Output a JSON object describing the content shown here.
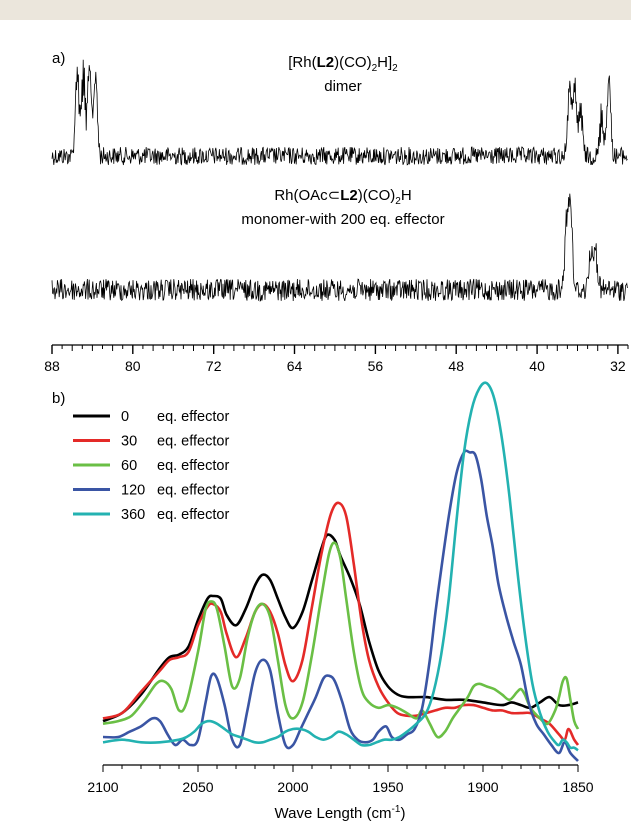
{
  "chart_data": [
    {
      "type": "line",
      "panel_label": "a)",
      "traces": [
        {
          "name_parts": [
            "[Rh(",
            "L2",
            ")(CO)",
            "2",
            "H]",
            "2"
          ],
          "subtitle": "dimer",
          "peaks": [
            {
              "x": 85.5,
              "height": 1.0
            },
            {
              "x": 84.9,
              "height": 1.0
            },
            {
              "x": 84.3,
              "height": 1.0
            },
            {
              "x": 83.7,
              "height": 0.95
            },
            {
              "x": 36.8,
              "height": 0.75
            },
            {
              "x": 36.3,
              "height": 0.8
            },
            {
              "x": 35.7,
              "height": 0.6
            },
            {
              "x": 33.6,
              "height": 0.5
            },
            {
              "x": 32.9,
              "height": 0.9
            }
          ]
        },
        {
          "name_parts": [
            "Rh(OAc⊂",
            "L2",
            ")(CO)",
            "2",
            "H"
          ],
          "subtitle": "monomer-with 200 eq. effector",
          "peaks": [
            {
              "x": 37.1,
              "height": 0.8
            },
            {
              "x": 36.7,
              "height": 1.0
            },
            {
              "x": 34.7,
              "height": 0.45
            },
            {
              "x": 34.2,
              "height": 0.5
            }
          ]
        }
      ],
      "xticks": [
        "88",
        "80",
        "72",
        "64",
        "56",
        "48",
        "40",
        "32"
      ],
      "xlim": [
        88,
        31
      ],
      "reversed_x": true
    },
    {
      "type": "line",
      "panel_label": "b)",
      "xlabel": "Wave Length (cm",
      "xlabel_sup": "-1",
      "xlabel_end": ")",
      "xlim": [
        2100,
        1850
      ],
      "xticks": [
        "2100",
        "2050",
        "2000",
        "1950",
        "1900",
        "1850"
      ],
      "series": [
        {
          "name": "0",
          "legend_text": "eq. effector",
          "color": "#000000",
          "x": [
            2100,
            2090,
            2080,
            2070,
            2065,
            2060,
            2055,
            2050,
            2045,
            2042,
            2038,
            2035,
            2030,
            2025,
            2020,
            2016,
            2012,
            2008,
            2004,
            2000,
            1995,
            1990,
            1985,
            1982,
            1978,
            1975,
            1970,
            1965,
            1960,
            1955,
            1950,
            1945,
            1940,
            1930,
            1920,
            1910,
            1900,
            1890,
            1885,
            1880,
            1875,
            1870,
            1865,
            1860,
            1855,
            1850
          ],
          "y": [
            0.09,
            0.12,
            0.19,
            0.29,
            0.33,
            0.34,
            0.37,
            0.47,
            0.55,
            0.56,
            0.55,
            0.49,
            0.45,
            0.51,
            0.6,
            0.64,
            0.62,
            0.55,
            0.48,
            0.44,
            0.5,
            0.62,
            0.74,
            0.79,
            0.77,
            0.71,
            0.63,
            0.53,
            0.39,
            0.28,
            0.22,
            0.19,
            0.18,
            0.18,
            0.17,
            0.17,
            0.16,
            0.15,
            0.16,
            0.15,
            0.14,
            0.16,
            0.18,
            0.15,
            0.15,
            0.16
          ]
        },
        {
          "name": "30",
          "legend_text": "eq. effector",
          "color": "#e42a28",
          "x": [
            2100,
            2090,
            2080,
            2070,
            2065,
            2060,
            2055,
            2050,
            2045,
            2042,
            2038,
            2035,
            2030,
            2025,
            2020,
            2016,
            2012,
            2008,
            2004,
            2000,
            1995,
            1990,
            1985,
            1980,
            1976,
            1972,
            1968,
            1964,
            1960,
            1955,
            1950,
            1945,
            1940,
            1935,
            1930,
            1925,
            1920,
            1915,
            1910,
            1905,
            1900,
            1895,
            1890,
            1885,
            1880,
            1875,
            1870,
            1865,
            1860,
            1857,
            1855,
            1852,
            1850
          ],
          "y": [
            0.1,
            0.12,
            0.2,
            0.28,
            0.32,
            0.33,
            0.35,
            0.45,
            0.52,
            0.53,
            0.5,
            0.42,
            0.33,
            0.4,
            0.5,
            0.53,
            0.5,
            0.42,
            0.3,
            0.24,
            0.32,
            0.52,
            0.72,
            0.87,
            0.91,
            0.86,
            0.68,
            0.47,
            0.32,
            0.22,
            0.16,
            0.12,
            0.11,
            0.11,
            0.12,
            0.13,
            0.14,
            0.14,
            0.15,
            0.15,
            0.14,
            0.13,
            0.13,
            0.12,
            0.12,
            0.12,
            0.1,
            0.08,
            0.04,
            0.02,
            0.06,
            0.02,
            0.0
          ]
        },
        {
          "name": "60",
          "legend_text": "eq. effector",
          "color": "#6abf45",
          "x": [
            2100,
            2092,
            2085,
            2078,
            2072,
            2068,
            2064,
            2060,
            2056,
            2050,
            2046,
            2043,
            2040,
            2036,
            2032,
            2028,
            2024,
            2020,
            2016,
            2012,
            2008,
            2004,
            2000,
            1995,
            1990,
            1985,
            1981,
            1978,
            1975,
            1972,
            1968,
            1964,
            1960,
            1955,
            1950,
            1945,
            1940,
            1935,
            1932,
            1928,
            1924,
            1920,
            1916,
            1912,
            1908,
            1905,
            1902,
            1898,
            1894,
            1890,
            1886,
            1882,
            1880,
            1878,
            1875,
            1870,
            1866,
            1862,
            1860,
            1858,
            1856,
            1854,
            1852,
            1850
          ],
          "y": [
            0.08,
            0.09,
            0.11,
            0.17,
            0.23,
            0.24,
            0.21,
            0.13,
            0.16,
            0.35,
            0.51,
            0.54,
            0.51,
            0.37,
            0.22,
            0.25,
            0.4,
            0.5,
            0.53,
            0.48,
            0.32,
            0.15,
            0.1,
            0.16,
            0.34,
            0.56,
            0.72,
            0.76,
            0.7,
            0.55,
            0.35,
            0.21,
            0.16,
            0.14,
            0.15,
            0.14,
            0.12,
            0.1,
            0.13,
            0.08,
            0.03,
            0.05,
            0.1,
            0.14,
            0.18,
            0.22,
            0.23,
            0.22,
            0.21,
            0.19,
            0.17,
            0.2,
            0.21,
            0.19,
            0.14,
            0.1,
            0.08,
            0.13,
            0.18,
            0.24,
            0.25,
            0.17,
            0.09,
            0.06
          ]
        },
        {
          "name": "120",
          "legend_text": "eq. effector",
          "color": "#3a55a4",
          "x": [
            2100,
            2092,
            2086,
            2080,
            2074,
            2070,
            2066,
            2062,
            2058,
            2054,
            2050,
            2046,
            2043,
            2040,
            2036,
            2032,
            2028,
            2024,
            2020,
            2016,
            2012,
            2008,
            2004,
            2000,
            1996,
            1992,
            1988,
            1984,
            1981,
            1978,
            1974,
            1970,
            1966,
            1962,
            1958,
            1955,
            1951,
            1948,
            1944,
            1940,
            1936,
            1932,
            1928,
            1925,
            1922,
            1918,
            1914,
            1910,
            1907,
            1904,
            1901,
            1898,
            1895,
            1892,
            1888,
            1884,
            1880,
            1876,
            1872,
            1868,
            1864,
            1860,
            1857,
            1854,
            1850
          ],
          "y": [
            0.03,
            0.03,
            0.05,
            0.07,
            0.1,
            0.09,
            0.04,
            0.0,
            0.02,
            0.0,
            0.02,
            0.16,
            0.26,
            0.25,
            0.15,
            0.02,
            0.0,
            0.13,
            0.27,
            0.32,
            0.28,
            0.12,
            0.0,
            0.0,
            0.06,
            0.12,
            0.18,
            0.25,
            0.26,
            0.24,
            0.16,
            0.06,
            0.02,
            0.01,
            0.02,
            0.05,
            0.07,
            0.03,
            0.02,
            0.04,
            0.06,
            0.14,
            0.32,
            0.5,
            0.66,
            0.86,
            1.02,
            1.1,
            1.1,
            1.09,
            1.0,
            0.86,
            0.75,
            0.61,
            0.49,
            0.39,
            0.3,
            0.16,
            0.08,
            0.04,
            0.0,
            -0.03,
            0.01,
            -0.03,
            -0.06
          ]
        },
        {
          "name": "360",
          "legend_text": "eq. effector",
          "color": "#23b2b1",
          "x": [
            2100,
            2090,
            2080,
            2070,
            2060,
            2056,
            2052,
            2048,
            2044,
            2040,
            2036,
            2032,
            2028,
            2024,
            2020,
            2016,
            2012,
            2008,
            2004,
            2000,
            1996,
            1992,
            1988,
            1984,
            1980,
            1976,
            1972,
            1968,
            1964,
            1960,
            1956,
            1952,
            1948,
            1944,
            1940,
            1935,
            1930,
            1926,
            1922,
            1918,
            1914,
            1910,
            1906,
            1902,
            1898,
            1894,
            1890,
            1886,
            1882,
            1878,
            1874,
            1870,
            1866,
            1862,
            1860,
            1858,
            1856,
            1854,
            1852,
            1850
          ],
          "y": [
            0.01,
            0.02,
            0.01,
            0.01,
            0.02,
            0.03,
            0.05,
            0.08,
            0.09,
            0.08,
            0.06,
            0.04,
            0.03,
            0.02,
            0.01,
            0.01,
            0.02,
            0.03,
            0.05,
            0.06,
            0.06,
            0.05,
            0.03,
            0.02,
            0.03,
            0.05,
            0.04,
            0.02,
            0.0,
            0.0,
            0.01,
            0.02,
            0.02,
            0.03,
            0.05,
            0.08,
            0.12,
            0.2,
            0.34,
            0.55,
            0.84,
            1.1,
            1.26,
            1.34,
            1.36,
            1.3,
            1.15,
            0.93,
            0.66,
            0.42,
            0.23,
            0.12,
            0.05,
            0.01,
            0.0,
            0.02,
            0.01,
            -0.01,
            -0.01,
            -0.02
          ]
        }
      ]
    }
  ]
}
